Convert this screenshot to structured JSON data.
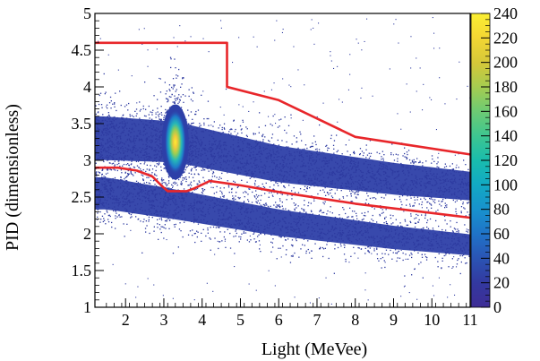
{
  "chart_data": {
    "type": "heatmap",
    "title": "",
    "xlabel": "Light (MeVee)",
    "ylabel": "PID (dimensionless)",
    "xlim": [
      1.2,
      11
    ],
    "ylim": [
      1,
      5
    ],
    "x_ticks": [
      2,
      3,
      4,
      5,
      6,
      7,
      8,
      9,
      10,
      11
    ],
    "y_ticks": [
      1,
      1.5,
      2,
      2.5,
      3,
      3.5,
      4,
      4.5,
      5
    ],
    "x_tick_labels": [
      "2",
      "3",
      "4",
      "5",
      "6",
      "7",
      "8",
      "9",
      "10",
      "11"
    ],
    "y_tick_labels": [
      "1",
      "1.5",
      "2",
      "2.5",
      "3",
      "3.5",
      "4",
      "4.5",
      "5"
    ],
    "colorbar": {
      "min": 0,
      "max": 240,
      "ticks": [
        0,
        20,
        40,
        60,
        80,
        100,
        120,
        140,
        160,
        180,
        200,
        220,
        240
      ],
      "tick_labels": [
        "0",
        "20",
        "40",
        "60",
        "80",
        "100",
        "120",
        "140",
        "160",
        "180",
        "200",
        "220",
        "240"
      ],
      "colors": [
        "#3e2d96",
        "#33389f",
        "#2a55b5",
        "#1f73c8",
        "#1891cd",
        "#12aac3",
        "#19bcad",
        "#3cc691",
        "#6fcb72",
        "#a5cc50",
        "#d4c839",
        "#f4d733",
        "#fbef33"
      ]
    },
    "density_regions": [
      {
        "name_hint": "upper band",
        "x_range": [
          1.2,
          11
        ],
        "center_y_at_x": [
          [
            1.5,
            3.3
          ],
          [
            3.3,
            3.25
          ],
          [
            6,
            2.95
          ],
          [
            9,
            2.75
          ],
          [
            11,
            2.65
          ]
        ]
      },
      {
        "name_hint": "lower band",
        "x_range": [
          1.2,
          11
        ],
        "center_y_at_x": [
          [
            1.5,
            2.55
          ],
          [
            3.3,
            2.4
          ],
          [
            6,
            2.15
          ],
          [
            9,
            1.95
          ],
          [
            11,
            1.85
          ]
        ]
      },
      {
        "name_hint": "hot spot",
        "x": 3.3,
        "y": 3.25,
        "peak": 240
      }
    ],
    "cut_lines": [
      {
        "color": "#e8262a",
        "points": [
          [
            1.2,
            4.6
          ],
          [
            4.65,
            4.6
          ],
          [
            4.65,
            4.0
          ],
          [
            6.0,
            3.82
          ],
          [
            8.0,
            3.32
          ],
          [
            11.0,
            3.08
          ]
        ]
      },
      {
        "color": "#e8262a",
        "points": [
          [
            1.2,
            2.9
          ],
          [
            1.8,
            2.9
          ],
          [
            2.3,
            2.86
          ],
          [
            2.7,
            2.78
          ],
          [
            2.95,
            2.65
          ],
          [
            3.1,
            2.58
          ],
          [
            3.6,
            2.58
          ],
          [
            3.8,
            2.62
          ],
          [
            4.2,
            2.72
          ],
          [
            5.0,
            2.66
          ],
          [
            6.0,
            2.57
          ],
          [
            8.0,
            2.41
          ],
          [
            11.0,
            2.22
          ]
        ]
      }
    ]
  }
}
